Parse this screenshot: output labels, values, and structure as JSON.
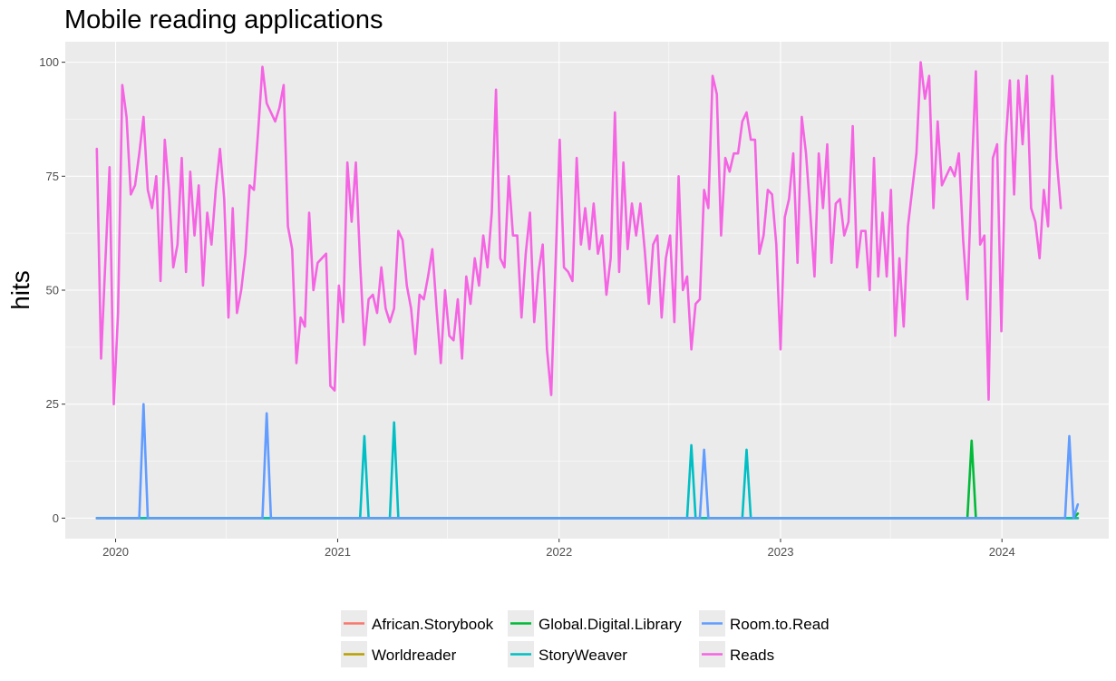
{
  "chart_data": {
    "type": "line",
    "title": "Mobile reading applications",
    "ylabel": "hits",
    "xlabel": "",
    "x_start": "2019-12-01",
    "x_end": "2024-05-05",
    "xlim": [
      "2019-10-10",
      "2024-06-25"
    ],
    "ylim": [
      -4.5,
      104.5
    ],
    "y_ticks": [
      0,
      25,
      50,
      75,
      100
    ],
    "x_ticks": [
      {
        "value": "2020-01-01",
        "label": "2020"
      },
      {
        "value": "2021-01-01",
        "label": "2021"
      },
      {
        "value": "2022-01-01",
        "label": "2022"
      },
      {
        "value": "2023-01-01",
        "label": "2023"
      },
      {
        "value": "2024-01-01",
        "label": "2024"
      }
    ],
    "x_minor_ticks": [
      "2020-07-01",
      "2021-07-01",
      "2022-07-01",
      "2023-07-01"
    ],
    "grid": true,
    "legend_position": "bottom",
    "series": [
      {
        "name": "African.Storybook",
        "color": "#F8766D",
        "baseline": 0,
        "peaks": []
      },
      {
        "name": "Worldreader",
        "color": "#B79F00",
        "baseline": 0,
        "peaks": []
      },
      {
        "name": "Global.Digital.Library",
        "color": "#00BA38",
        "baseline": 0,
        "peaks": [
          {
            "date": "2023-11-12",
            "value": 17
          },
          {
            "date": "2024-05-05",
            "value": 1
          }
        ]
      },
      {
        "name": "StoryWeaver",
        "color": "#00BFC4",
        "baseline": 0,
        "peaks": [
          {
            "date": "2021-02-14",
            "value": 18
          },
          {
            "date": "2021-04-04",
            "value": 21
          },
          {
            "date": "2022-08-07",
            "value": 16
          },
          {
            "date": "2022-11-06",
            "value": 15
          }
        ]
      },
      {
        "name": "Room.to.Read",
        "color": "#619CFF",
        "baseline": 0,
        "peaks": [
          {
            "date": "2020-02-16",
            "value": 25
          },
          {
            "date": "2020-09-06",
            "value": 23
          },
          {
            "date": "2022-08-28",
            "value": 15
          },
          {
            "date": "2024-04-21",
            "value": 18
          },
          {
            "date": "2024-05-05",
            "value": 3
          }
        ]
      },
      {
        "name": "Reads",
        "color": "#F564E3",
        "baseline": null,
        "peaks": [],
        "points": [
          [
            "2019-12-01",
            81
          ],
          [
            "2019-12-08",
            35
          ],
          [
            "2019-12-15",
            56
          ],
          [
            "2019-12-22",
            77
          ],
          [
            "2019-12-29",
            25
          ],
          [
            "2020-01-05",
            45
          ],
          [
            "2020-01-12",
            95
          ],
          [
            "2020-01-19",
            88
          ],
          [
            "2020-01-26",
            71
          ],
          [
            "2020-02-02",
            73
          ],
          [
            "2020-02-09",
            80
          ],
          [
            "2020-02-16",
            88
          ],
          [
            "2020-02-23",
            72
          ],
          [
            "2020-03-01",
            68
          ],
          [
            "2020-03-08",
            75
          ],
          [
            "2020-03-15",
            52
          ],
          [
            "2020-03-22",
            83
          ],
          [
            "2020-03-29",
            72
          ],
          [
            "2020-04-05",
            55
          ],
          [
            "2020-04-12",
            60
          ],
          [
            "2020-04-19",
            79
          ],
          [
            "2020-04-26",
            54
          ],
          [
            "2020-05-03",
            76
          ],
          [
            "2020-05-10",
            62
          ],
          [
            "2020-05-17",
            73
          ],
          [
            "2020-05-24",
            51
          ],
          [
            "2020-05-31",
            67
          ],
          [
            "2020-06-07",
            60
          ],
          [
            "2020-06-14",
            72
          ],
          [
            "2020-06-21",
            81
          ],
          [
            "2020-06-28",
            70
          ],
          [
            "2020-07-05",
            44
          ],
          [
            "2020-07-12",
            68
          ],
          [
            "2020-07-19",
            45
          ],
          [
            "2020-07-26",
            50
          ],
          [
            "2020-08-02",
            58
          ],
          [
            "2020-08-09",
            73
          ],
          [
            "2020-08-16",
            72
          ],
          [
            "2020-08-23",
            85
          ],
          [
            "2020-08-30",
            99
          ],
          [
            "2020-09-06",
            91
          ],
          [
            "2020-09-13",
            89
          ],
          [
            "2020-09-20",
            87
          ],
          [
            "2020-09-27",
            90
          ],
          [
            "2020-10-04",
            95
          ],
          [
            "2020-10-11",
            64
          ],
          [
            "2020-10-18",
            59
          ],
          [
            "2020-10-25",
            34
          ],
          [
            "2020-11-01",
            44
          ],
          [
            "2020-11-08",
            42
          ],
          [
            "2020-11-15",
            67
          ],
          [
            "2020-11-22",
            50
          ],
          [
            "2020-11-29",
            56
          ],
          [
            "2020-12-06",
            57
          ],
          [
            "2020-12-13",
            58
          ],
          [
            "2020-12-20",
            29
          ],
          [
            "2020-12-27",
            28
          ],
          [
            "2021-01-03",
            51
          ],
          [
            "2021-01-10",
            43
          ],
          [
            "2021-01-17",
            78
          ],
          [
            "2021-01-24",
            65
          ],
          [
            "2021-01-31",
            78
          ],
          [
            "2021-02-07",
            56
          ],
          [
            "2021-02-14",
            38
          ],
          [
            "2021-02-21",
            48
          ],
          [
            "2021-02-28",
            49
          ],
          [
            "2021-03-07",
            45
          ],
          [
            "2021-03-14",
            55
          ],
          [
            "2021-03-21",
            46
          ],
          [
            "2021-03-28",
            43
          ],
          [
            "2021-04-04",
            46
          ],
          [
            "2021-04-11",
            63
          ],
          [
            "2021-04-18",
            61
          ],
          [
            "2021-04-25",
            51
          ],
          [
            "2021-05-02",
            46
          ],
          [
            "2021-05-09",
            36
          ],
          [
            "2021-05-16",
            49
          ],
          [
            "2021-05-23",
            48
          ],
          [
            "2021-05-30",
            53
          ],
          [
            "2021-06-06",
            59
          ],
          [
            "2021-06-13",
            46
          ],
          [
            "2021-06-20",
            34
          ],
          [
            "2021-06-27",
            50
          ],
          [
            "2021-07-04",
            40
          ],
          [
            "2021-07-11",
            39
          ],
          [
            "2021-07-18",
            48
          ],
          [
            "2021-07-25",
            35
          ],
          [
            "2021-08-01",
            53
          ],
          [
            "2021-08-08",
            47
          ],
          [
            "2021-08-15",
            57
          ],
          [
            "2021-08-22",
            51
          ],
          [
            "2021-08-29",
            62
          ],
          [
            "2021-09-05",
            55
          ],
          [
            "2021-09-12",
            67
          ],
          [
            "2021-09-19",
            94
          ],
          [
            "2021-09-26",
            57
          ],
          [
            "2021-10-03",
            55
          ],
          [
            "2021-10-10",
            75
          ],
          [
            "2021-10-17",
            62
          ],
          [
            "2021-10-24",
            62
          ],
          [
            "2021-10-31",
            44
          ],
          [
            "2021-11-07",
            58
          ],
          [
            "2021-11-14",
            67
          ],
          [
            "2021-11-21",
            43
          ],
          [
            "2021-11-28",
            54
          ],
          [
            "2021-12-05",
            60
          ],
          [
            "2021-12-12",
            37
          ],
          [
            "2021-12-19",
            27
          ],
          [
            "2021-12-26",
            55
          ],
          [
            "2022-01-02",
            83
          ],
          [
            "2022-01-09",
            55
          ],
          [
            "2022-01-16",
            54
          ],
          [
            "2022-01-23",
            52
          ],
          [
            "2022-01-30",
            79
          ],
          [
            "2022-02-06",
            60
          ],
          [
            "2022-02-13",
            68
          ],
          [
            "2022-02-20",
            59
          ],
          [
            "2022-02-27",
            69
          ],
          [
            "2022-03-06",
            58
          ],
          [
            "2022-03-13",
            62
          ],
          [
            "2022-03-20",
            49
          ],
          [
            "2022-03-27",
            57
          ],
          [
            "2022-04-03",
            89
          ],
          [
            "2022-04-10",
            54
          ],
          [
            "2022-04-17",
            78
          ],
          [
            "2022-04-24",
            59
          ],
          [
            "2022-05-01",
            69
          ],
          [
            "2022-05-08",
            62
          ],
          [
            "2022-05-15",
            69
          ],
          [
            "2022-05-22",
            59
          ],
          [
            "2022-05-29",
            47
          ],
          [
            "2022-06-05",
            60
          ],
          [
            "2022-06-12",
            62
          ],
          [
            "2022-06-19",
            44
          ],
          [
            "2022-06-26",
            57
          ],
          [
            "2022-07-03",
            62
          ],
          [
            "2022-07-10",
            43
          ],
          [
            "2022-07-17",
            75
          ],
          [
            "2022-07-24",
            50
          ],
          [
            "2022-07-31",
            53
          ],
          [
            "2022-08-07",
            37
          ],
          [
            "2022-08-14",
            47
          ],
          [
            "2022-08-21",
            48
          ],
          [
            "2022-08-28",
            72
          ],
          [
            "2022-09-04",
            68
          ],
          [
            "2022-09-11",
            97
          ],
          [
            "2022-09-18",
            93
          ],
          [
            "2022-09-25",
            62
          ],
          [
            "2022-10-02",
            79
          ],
          [
            "2022-10-09",
            76
          ],
          [
            "2022-10-16",
            80
          ],
          [
            "2022-10-23",
            80
          ],
          [
            "2022-10-30",
            87
          ],
          [
            "2022-11-06",
            89
          ],
          [
            "2022-11-13",
            83
          ],
          [
            "2022-11-20",
            83
          ],
          [
            "2022-11-27",
            58
          ],
          [
            "2022-12-04",
            62
          ],
          [
            "2022-12-11",
            72
          ],
          [
            "2022-12-18",
            71
          ],
          [
            "2022-12-25",
            60
          ],
          [
            "2023-01-01",
            37
          ],
          [
            "2023-01-08",
            66
          ],
          [
            "2023-01-15",
            70
          ],
          [
            "2023-01-22",
            80
          ],
          [
            "2023-01-29",
            56
          ],
          [
            "2023-02-05",
            88
          ],
          [
            "2023-02-12",
            80
          ],
          [
            "2023-02-19",
            67
          ],
          [
            "2023-02-26",
            53
          ],
          [
            "2023-03-05",
            80
          ],
          [
            "2023-03-12",
            68
          ],
          [
            "2023-03-19",
            82
          ],
          [
            "2023-03-26",
            56
          ],
          [
            "2023-04-02",
            69
          ],
          [
            "2023-04-09",
            70
          ],
          [
            "2023-04-16",
            62
          ],
          [
            "2023-04-23",
            65
          ],
          [
            "2023-04-30",
            86
          ],
          [
            "2023-05-07",
            55
          ],
          [
            "2023-05-14",
            63
          ],
          [
            "2023-05-21",
            63
          ],
          [
            "2023-05-28",
            50
          ],
          [
            "2023-06-04",
            79
          ],
          [
            "2023-06-11",
            53
          ],
          [
            "2023-06-18",
            67
          ],
          [
            "2023-06-25",
            53
          ],
          [
            "2023-07-02",
            72
          ],
          [
            "2023-07-09",
            40
          ],
          [
            "2023-07-16",
            57
          ],
          [
            "2023-07-23",
            42
          ],
          [
            "2023-07-30",
            64
          ],
          [
            "2023-08-06",
            72
          ],
          [
            "2023-08-13",
            80
          ],
          [
            "2023-08-20",
            100
          ],
          [
            "2023-08-27",
            92
          ],
          [
            "2023-09-03",
            97
          ],
          [
            "2023-09-10",
            68
          ],
          [
            "2023-09-17",
            87
          ],
          [
            "2023-09-24",
            73
          ],
          [
            "2023-10-01",
            75
          ],
          [
            "2023-10-08",
            77
          ],
          [
            "2023-10-15",
            75
          ],
          [
            "2023-10-22",
            80
          ],
          [
            "2023-10-29",
            61
          ],
          [
            "2023-11-05",
            48
          ],
          [
            "2023-11-12",
            75
          ],
          [
            "2023-11-19",
            98
          ],
          [
            "2023-11-26",
            60
          ],
          [
            "2023-12-03",
            62
          ],
          [
            "2023-12-10",
            26
          ],
          [
            "2023-12-17",
            79
          ],
          [
            "2023-12-24",
            82
          ],
          [
            "2023-12-31",
            41
          ],
          [
            "2024-01-07",
            82
          ],
          [
            "2024-01-14",
            96
          ],
          [
            "2024-01-21",
            71
          ],
          [
            "2024-01-28",
            96
          ],
          [
            "2024-02-04",
            82
          ],
          [
            "2024-02-11",
            97
          ],
          [
            "2024-02-18",
            68
          ],
          [
            "2024-02-25",
            65
          ],
          [
            "2024-03-03",
            57
          ],
          [
            "2024-03-10",
            72
          ],
          [
            "2024-03-17",
            64
          ],
          [
            "2024-03-24",
            97
          ],
          [
            "2024-03-31",
            79
          ],
          [
            "2024-04-07",
            68
          ]
        ]
      }
    ]
  }
}
